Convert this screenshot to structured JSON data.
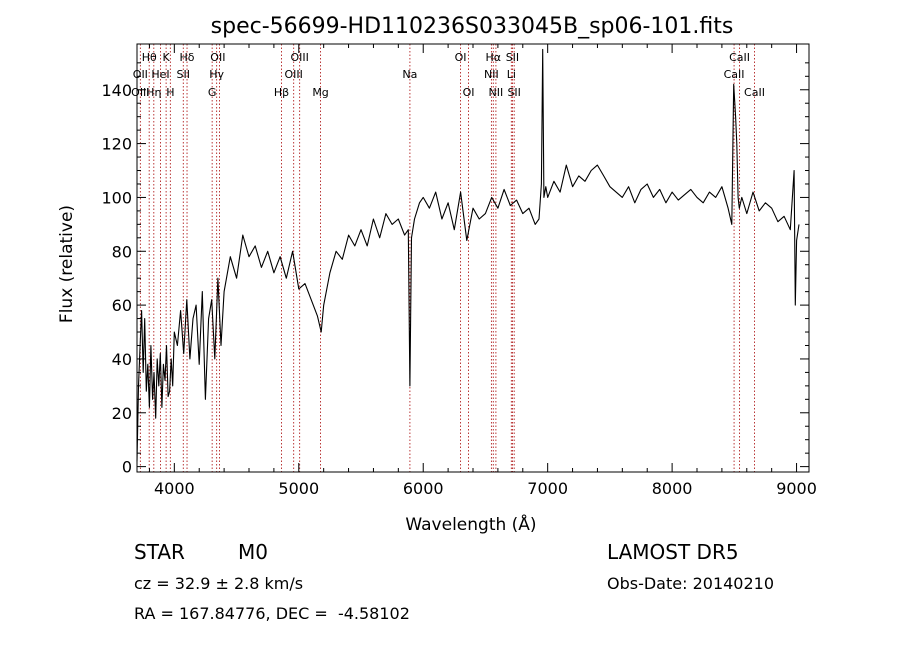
{
  "chart_data": {
    "type": "line",
    "title": "spec-56699-HD110236S033045B_sp06-101.fits",
    "xlabel": "Wavelength (Å)",
    "ylabel": "Flux (relative)",
    "xlim": [
      3700,
      9100
    ],
    "ylim": [
      -2,
      157
    ],
    "xticks": [
      4000,
      5000,
      6000,
      7000,
      8000,
      9000
    ],
    "yticks": [
      0,
      20,
      40,
      60,
      80,
      100,
      120,
      140
    ],
    "grid": false,
    "series": [
      {
        "x": [
          3700,
          3712,
          3725,
          3737,
          3750,
          3762,
          3775,
          3787,
          3800,
          3812,
          3825,
          3837,
          3850,
          3862,
          3875,
          3887,
          3900,
          3912,
          3925,
          3937,
          3950,
          3962,
          3975,
          3987,
          4000,
          4025,
          4050,
          4075,
          4100,
          4125,
          4150,
          4175,
          4200,
          4225,
          4250,
          4275,
          4300,
          4325,
          4350,
          4375,
          4400,
          4450,
          4500,
          4550,
          4600,
          4650,
          4700,
          4750,
          4800,
          4850,
          4900,
          4950,
          5000,
          5050,
          5100,
          5150,
          5180,
          5200,
          5250,
          5300,
          5350,
          5400,
          5450,
          5500,
          5550,
          5600,
          5650,
          5700,
          5750,
          5800,
          5850,
          5880,
          5893,
          5906,
          5930,
          5970,
          6000,
          6050,
          6100,
          6150,
          6200,
          6250,
          6300,
          6350,
          6400,
          6450,
          6500,
          6550,
          6600,
          6650,
          6700,
          6750,
          6800,
          6850,
          6900,
          6930,
          6950,
          6960,
          6970,
          6985,
          7000,
          7050,
          7100,
          7150,
          7200,
          7250,
          7300,
          7350,
          7400,
          7450,
          7500,
          7550,
          7600,
          7650,
          7700,
          7750,
          7800,
          7850,
          7900,
          7950,
          8000,
          8050,
          8100,
          8150,
          8200,
          8250,
          8300,
          8350,
          8400,
          8450,
          8480,
          8495,
          8510,
          8520,
          8530,
          8540,
          8560,
          8600,
          8650,
          8700,
          8750,
          8800,
          8850,
          8900,
          8950,
          8980,
          8990,
          9000,
          9020
        ],
        "y": [
          2,
          30,
          45,
          58,
          35,
          55,
          28,
          38,
          22,
          45,
          25,
          35,
          18,
          40,
          30,
          42,
          22,
          38,
          32,
          45,
          26,
          28,
          40,
          30,
          50,
          45,
          58,
          42,
          62,
          40,
          55,
          60,
          38,
          65,
          25,
          55,
          62,
          40,
          70,
          45,
          65,
          78,
          70,
          86,
          78,
          82,
          74,
          80,
          72,
          78,
          70,
          80,
          66,
          68,
          62,
          56,
          50,
          60,
          72,
          80,
          77,
          86,
          82,
          88,
          82,
          92,
          85,
          94,
          90,
          92,
          86,
          88,
          30,
          85,
          92,
          98,
          100,
          96,
          102,
          92,
          98,
          88,
          102,
          84,
          96,
          92,
          94,
          100,
          96,
          103,
          97,
          99,
          94,
          96,
          90,
          92,
          105,
          155,
          100,
          104,
          100,
          106,
          102,
          112,
          104,
          108,
          106,
          110,
          112,
          108,
          104,
          102,
          100,
          104,
          98,
          103,
          105,
          100,
          103,
          98,
          102,
          99,
          101,
          103,
          100,
          98,
          102,
          100,
          104,
          96,
          90,
          142,
          130,
          120,
          100,
          96,
          100,
          94,
          102,
          95,
          98,
          96,
          91,
          93,
          88,
          110,
          60,
          84,
          90
        ],
        "color": "#000000"
      }
    ],
    "annotations": [
      {
        "text": "Hθ",
        "x": 3798,
        "row": 1
      },
      {
        "text": "K",
        "x": 3934,
        "row": 1
      },
      {
        "text": "Hδ",
        "x": 4102,
        "row": 1
      },
      {
        "text": "OII",
        "x": 4350,
        "row": 1
      },
      {
        "text": "OIII",
        "x": 5007,
        "row": 1
      },
      {
        "text": "OI",
        "x": 6300,
        "row": 1
      },
      {
        "text": "Hα",
        "x": 6563,
        "row": 1
      },
      {
        "text": "SII",
        "x": 6717,
        "row": 1
      },
      {
        "text": "CaII",
        "x": 8542,
        "row": 1
      },
      {
        "text": "OII",
        "x": 3727,
        "row": 2
      },
      {
        "text": "HeI",
        "x": 3889,
        "row": 2
      },
      {
        "text": "SII",
        "x": 4072,
        "row": 2
      },
      {
        "text": "Hγ",
        "x": 4340,
        "row": 2
      },
      {
        "text": "OIII",
        "x": 4959,
        "row": 2
      },
      {
        "text": "Na",
        "x": 5893,
        "row": 2
      },
      {
        "text": "NII",
        "x": 6548,
        "row": 2
      },
      {
        "text": "Li",
        "x": 6708,
        "row": 2
      },
      {
        "text": "CaII",
        "x": 8498,
        "row": 2
      },
      {
        "text": "OIII",
        "x": 3727,
        "row": 3
      },
      {
        "text": "Hη",
        "x": 3835,
        "row": 3
      },
      {
        "text": "H",
        "x": 3968,
        "row": 3
      },
      {
        "text": "G",
        "x": 4304,
        "row": 3
      },
      {
        "text": "Hβ",
        "x": 4861,
        "row": 3
      },
      {
        "text": "Mg",
        "x": 5175,
        "row": 3
      },
      {
        "text": "OI",
        "x": 6364,
        "row": 3
      },
      {
        "text": "NII",
        "x": 6584,
        "row": 3
      },
      {
        "text": "SII",
        "x": 6731,
        "row": 3
      },
      {
        "text": "CaII",
        "x": 8662,
        "row": 3
      }
    ],
    "line_markers": [
      3727,
      3798,
      3835,
      3889,
      3934,
      3968,
      4072,
      4102,
      4304,
      4340,
      4363,
      4861,
      4959,
      5007,
      5175,
      5893,
      6300,
      6364,
      6548,
      6563,
      6584,
      6708,
      6717,
      6731,
      8498,
      8542,
      8662
    ],
    "marker_color": "#b22222"
  },
  "info": {
    "object_type": "STAR",
    "subclass": "M0",
    "survey": "LAMOST DR5",
    "cz": "cz = 32.9 ± 2.8 km/s",
    "obs_date": "Obs-Date: 20140210",
    "coords": "RA = 167.84776, DEC =  -4.58102"
  }
}
